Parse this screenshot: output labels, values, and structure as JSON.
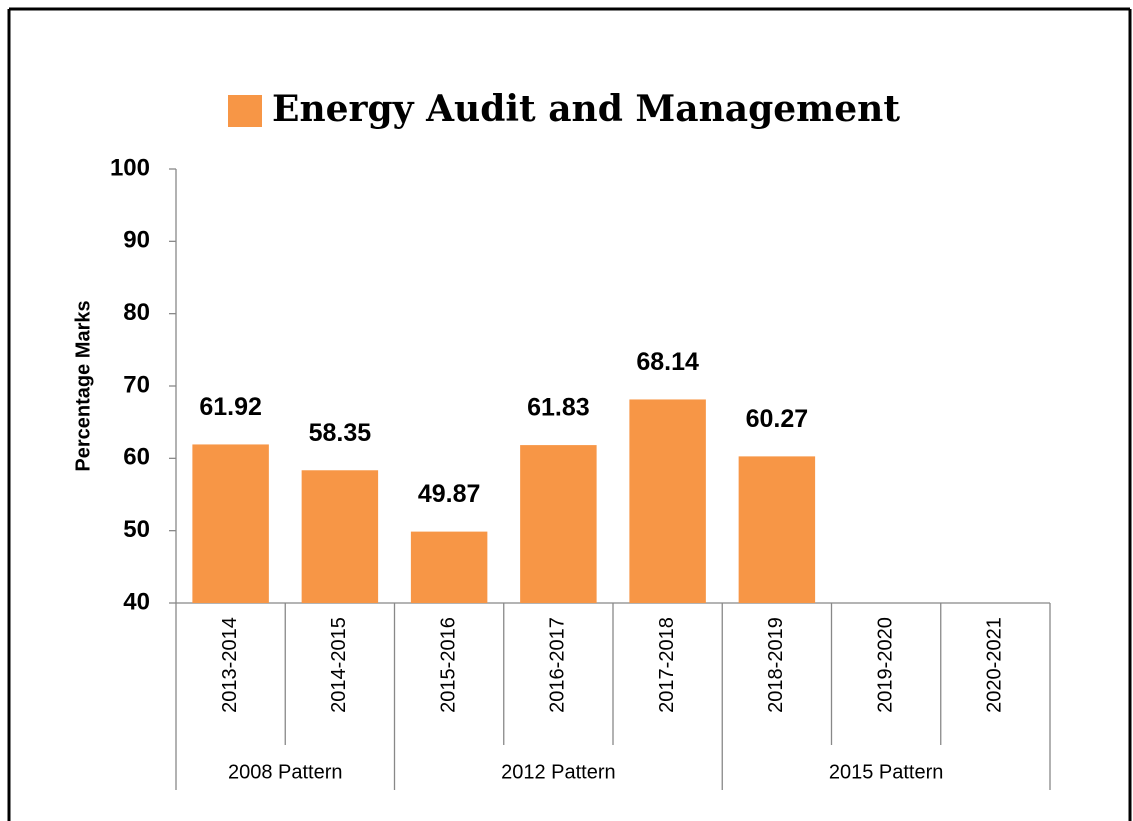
{
  "chart_data": {
    "type": "bar",
    "ylabel": "Percentage Marks",
    "groups": [
      {
        "name": "2008 Pattern",
        "categories": [
          "2013-2014",
          "2014-2015"
        ]
      },
      {
        "name": "2012 Pattern",
        "categories": [
          "2015-2016",
          "2016-2017",
          "2017-2018"
        ]
      },
      {
        "name": "2015 Pattern",
        "categories": [
          "2018-2019",
          "2019-2020",
          "2020-2021"
        ]
      }
    ],
    "series": [
      {
        "name": "Energy Audit and Management",
        "color": "#f79646",
        "values": [
          61.92,
          58.35,
          49.87,
          61.83,
          68.14,
          60.27,
          null,
          null
        ]
      }
    ],
    "ylim": [
      40,
      100
    ],
    "yticks": [
      40,
      50,
      60,
      70,
      80,
      90,
      100
    ],
    "legend": "top",
    "grid": false
  }
}
